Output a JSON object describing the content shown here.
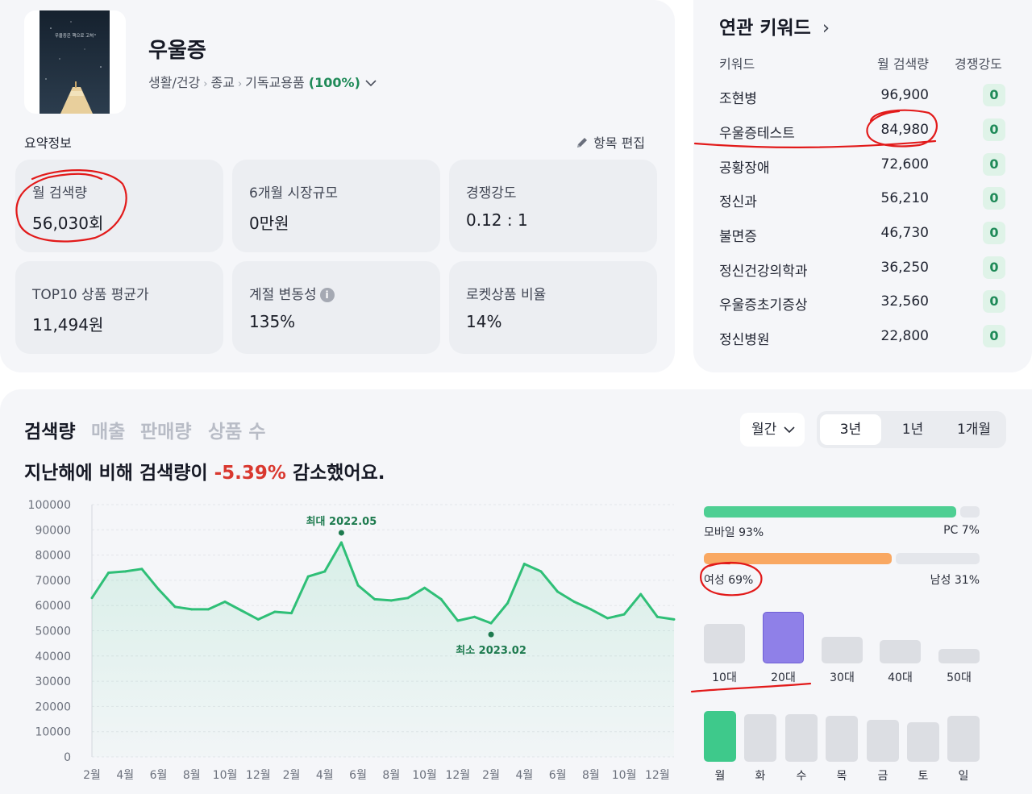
{
  "product": {
    "keyword": "우울증",
    "category_path": [
      "생활/건강",
      "종교",
      "기독교용품"
    ],
    "category_share": "(100%)",
    "cover_title": "우울증은 핵으로 고쳐"
  },
  "summary": {
    "section_title": "요약정보",
    "edit_label": "항목 편집",
    "cards": [
      {
        "label": "월 검색량",
        "value": "56,030회"
      },
      {
        "label": "6개월 시장규모",
        "value": "0만원"
      },
      {
        "label": "경쟁강도",
        "value": "0.12 : 1"
      },
      {
        "label": "TOP10 상품 평균가",
        "value": "11,494원"
      },
      {
        "label": "계절 변동성",
        "value": "135%"
      },
      {
        "label": "로켓상품 비율",
        "value": "14%"
      }
    ],
    "info_glyph": "i"
  },
  "related": {
    "title": "연관 키워드",
    "chevron": "›",
    "headers": {
      "keyword": "키워드",
      "volume": "월 검색량",
      "competition": "경쟁강도"
    },
    "rows": [
      {
        "keyword": "조현병",
        "volume": "96,900",
        "competition": "0"
      },
      {
        "keyword": "우울증테스트",
        "volume": "84,980",
        "competition": "0"
      },
      {
        "keyword": "공황장애",
        "volume": "72,600",
        "competition": "0"
      },
      {
        "keyword": "정신과",
        "volume": "56,210",
        "competition": "0"
      },
      {
        "keyword": "불면증",
        "volume": "46,730",
        "competition": "0"
      },
      {
        "keyword": "정신건강의학과",
        "volume": "36,250",
        "competition": "0"
      },
      {
        "keyword": "우울증초기증상",
        "volume": "32,560",
        "competition": "0"
      },
      {
        "keyword": "정신병원",
        "volume": "22,800",
        "competition": "0"
      }
    ]
  },
  "trend": {
    "tabs": [
      "검색량",
      "매출",
      "판매량",
      "상품 수"
    ],
    "active_tab": "검색량",
    "headline_prefix": "지난해에 비해 검색량이 ",
    "headline_change": "-5.39%",
    "headline_suffix": " 감소했어요.",
    "period_select": "월간",
    "ranges": [
      "3년",
      "1년",
      "1개월"
    ],
    "active_range": "3년"
  },
  "demographics": {
    "device": {
      "mobile_label": "모바일 93%",
      "pc_label": "PC 7%",
      "mobile_pct": 93,
      "pc_pct": 7
    },
    "gender": {
      "female_label": "여성 69%",
      "male_label": "남성 31%",
      "female_pct": 69,
      "male_pct": 31
    },
    "ages": [
      {
        "label": "10대",
        "value": 0.76
      },
      {
        "label": "20대",
        "value": 1.0
      },
      {
        "label": "30대",
        "value": 0.52
      },
      {
        "label": "40대",
        "value": 0.46
      },
      {
        "label": "50대",
        "value": 0.28
      }
    ],
    "weekdays": [
      {
        "label": "월",
        "value": 1.0
      },
      {
        "label": "화",
        "value": 0.93
      },
      {
        "label": "수",
        "value": 0.93
      },
      {
        "label": "목",
        "value": 0.9
      },
      {
        "label": "금",
        "value": 0.83
      },
      {
        "label": "토",
        "value": 0.77
      },
      {
        "label": "일",
        "value": 0.9
      }
    ]
  },
  "colors": {
    "accent_green": "#3ec98b",
    "line_green": "#2fbf77",
    "dark_green": "#1d7a4e",
    "orange": "#f9a862",
    "purple": "#8f80e8",
    "negative_red": "#d9382f"
  },
  "chart_data": {
    "type": "line",
    "title": "",
    "xlabel": "",
    "ylabel": "",
    "ylim": [
      0,
      100000
    ],
    "yticks": [
      0,
      10000,
      20000,
      30000,
      40000,
      50000,
      60000,
      70000,
      80000,
      90000,
      100000
    ],
    "ytick_labels": [
      "0",
      "10000",
      "20000",
      "30000",
      "40000",
      "50000",
      "60000",
      "70000",
      "80000",
      "90000",
      "100000"
    ],
    "xtick_labels": [
      "2월",
      "4월",
      "6월",
      "8월",
      "10월",
      "12월",
      "2월",
      "4월",
      "6월",
      "8월",
      "10월",
      "12월",
      "2월",
      "4월",
      "6월",
      "8월",
      "10월",
      "12월"
    ],
    "x": [
      "2021.02",
      "2021.03",
      "2021.04",
      "2021.05",
      "2021.06",
      "2021.07",
      "2021.08",
      "2021.09",
      "2021.10",
      "2021.11",
      "2021.12",
      "2022.01",
      "2022.02",
      "2022.03",
      "2022.04",
      "2022.05",
      "2022.06",
      "2022.07",
      "2022.08",
      "2022.09",
      "2022.10",
      "2022.11",
      "2022.12",
      "2023.01",
      "2023.02",
      "2023.03",
      "2023.04",
      "2023.05",
      "2023.06",
      "2023.07",
      "2023.08",
      "2023.09",
      "2023.10",
      "2023.11",
      "2023.12",
      "2024.01"
    ],
    "series": [
      {
        "name": "검색량",
        "values": [
          63000,
          73000,
          73500,
          74500,
          66500,
          59500,
          58500,
          58500,
          61500,
          58000,
          54500,
          57500,
          57000,
          71500,
          73500,
          85000,
          68000,
          62500,
          62000,
          63000,
          67000,
          62500,
          54000,
          55500,
          53000,
          61000,
          76500,
          73500,
          65500,
          61500,
          58500,
          55000,
          56500,
          64500,
          55500,
          54500
        ]
      }
    ],
    "annotations": [
      {
        "label": "최대 2022.05",
        "index": 15
      },
      {
        "label": "최소 2023.02",
        "index": 24
      }
    ]
  }
}
